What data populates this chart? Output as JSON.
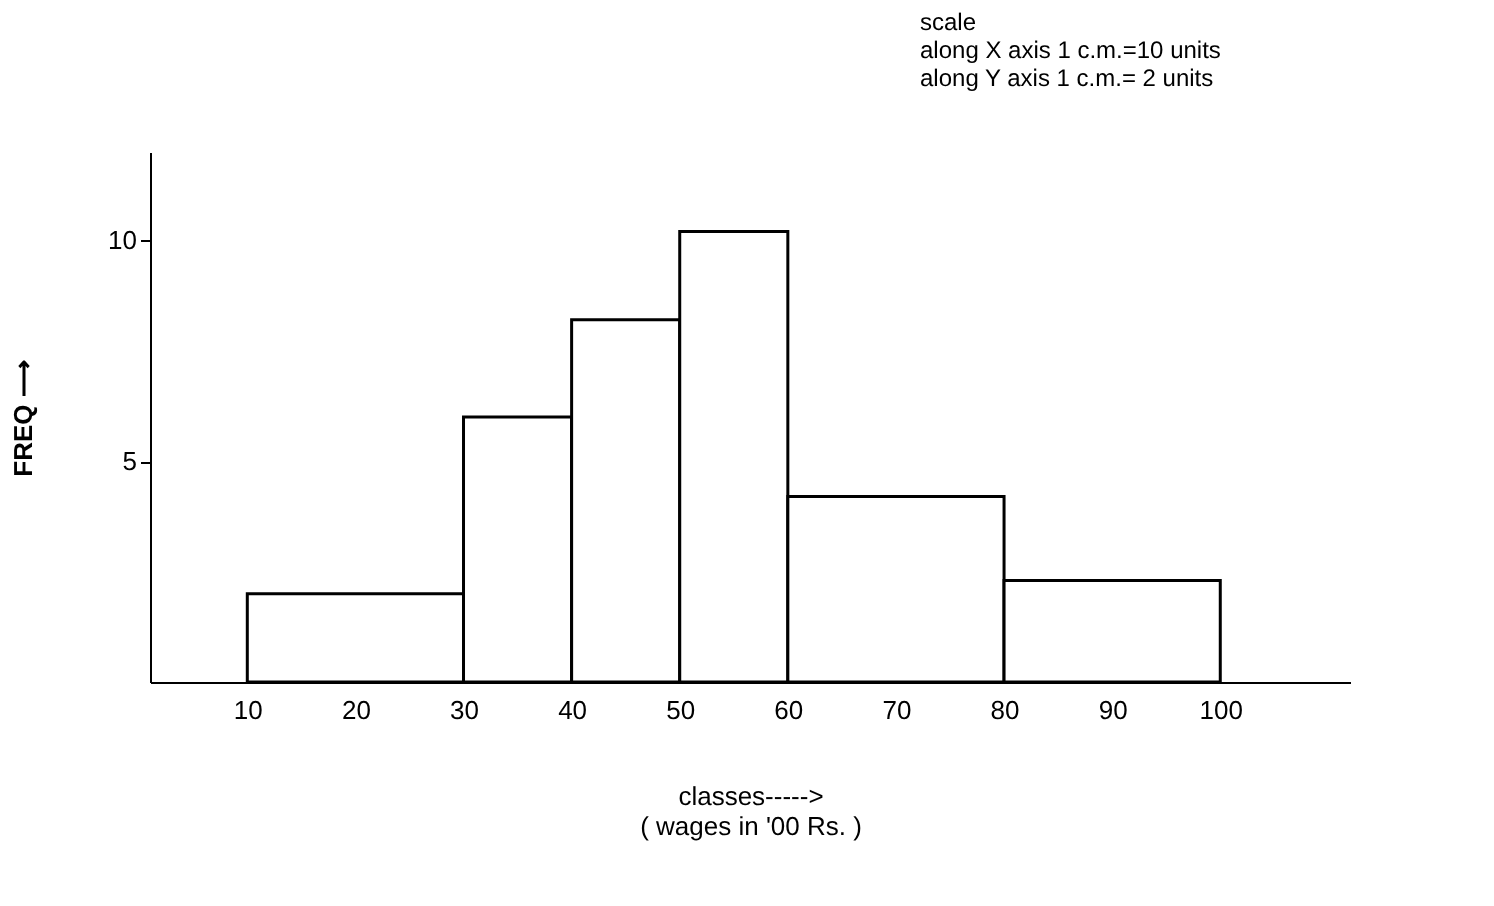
{
  "chart_data": {
    "type": "histogram",
    "bins": [
      10,
      30,
      40,
      50,
      60,
      80,
      100
    ],
    "values": [
      2,
      6,
      8.2,
      10.2,
      4.2,
      2.3
    ],
    "color": "#ffffff",
    "xlabel": "classes----->\n( wages in '00 Rs. )",
    "ylabel": "FREQ ⟶",
    "annotations": [
      "scale",
      "along X axis  1 c.m.=10 units",
      "along Y axis  1 c.m.= 2 units"
    ],
    "xlim": [
      1,
      112
    ],
    "xticks": [
      10,
      20,
      30,
      40,
      50,
      60,
      70,
      80,
      90,
      100
    ],
    "ylim": [
      0,
      12
    ],
    "yticks": [
      5,
      10
    ],
    "grid": false
  }
}
